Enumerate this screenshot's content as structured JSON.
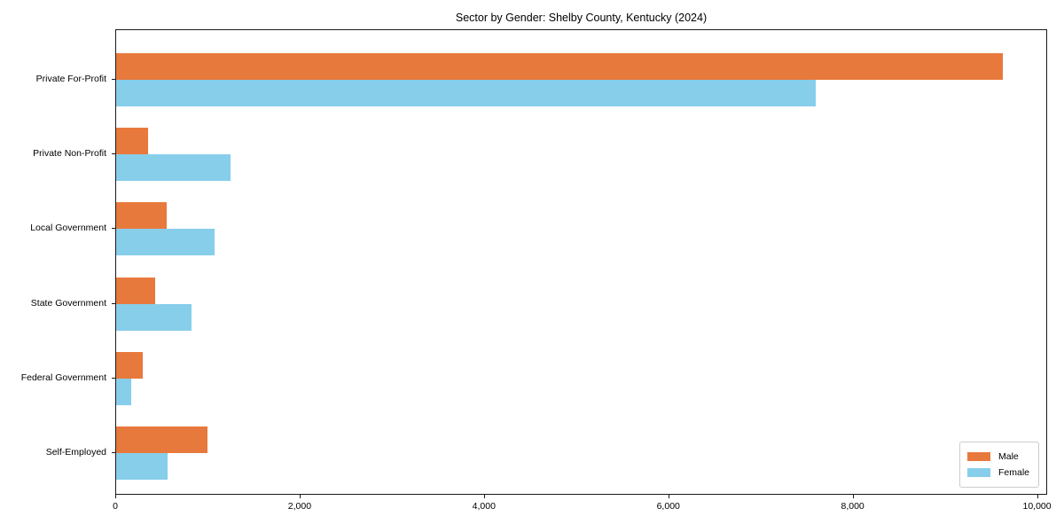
{
  "chart_data": {
    "type": "bar",
    "orientation": "horizontal",
    "title": "Sector by Gender: Shelby County, Kentucky (2024)",
    "categories": [
      "Private For-Profit",
      "Private Non-Profit",
      "Local Government",
      "State Government",
      "Federal Government",
      "Self-Employed"
    ],
    "series": [
      {
        "name": "Male",
        "color": "#E8793D",
        "values": [
          9640,
          350,
          550,
          425,
          290,
          990
        ]
      },
      {
        "name": "Female",
        "color": "#87CEEB",
        "values": [
          7600,
          1240,
          1070,
          820,
          160,
          560
        ]
      }
    ],
    "xlabel": "",
    "ylabel": "",
    "xlim": [
      0,
      10110
    ],
    "x_tick_values": [
      0,
      2000,
      4000,
      6000,
      8000,
      10000
    ],
    "x_tick_labels": [
      "0",
      "2,000",
      "4,000",
      "6,000",
      "8,000",
      "10,000"
    ],
    "grid": false,
    "legend": {
      "position": "lower right"
    },
    "colors": {
      "spine": "#1a1a1a",
      "legend_border": "#cccccc",
      "background": "#ffffff"
    }
  }
}
